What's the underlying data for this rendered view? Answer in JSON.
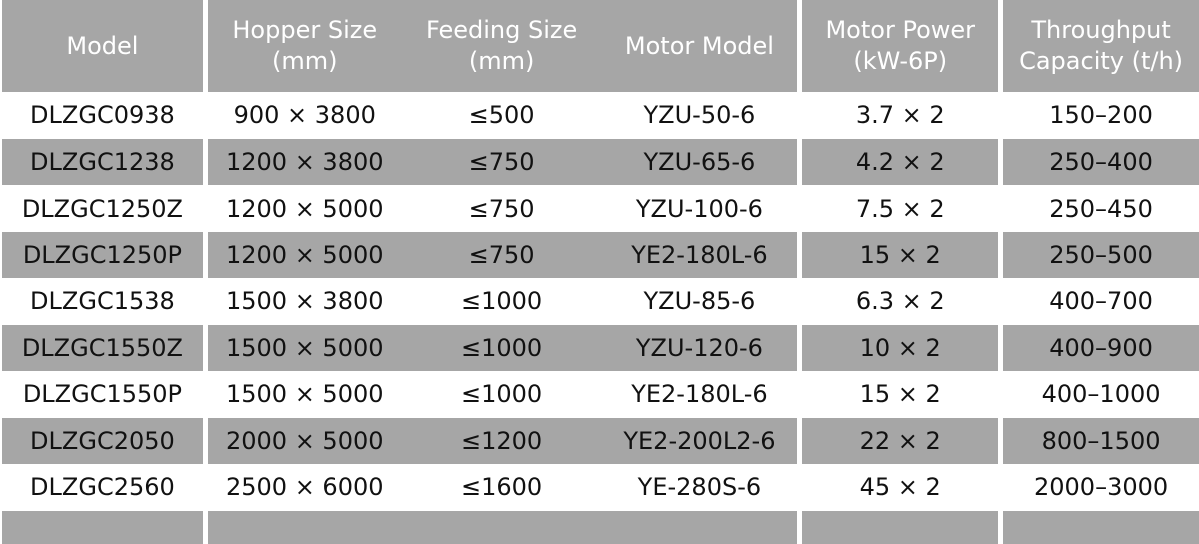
{
  "headers": [
    "Model",
    "Hopper Size\n(mm)",
    "Feeding Size\n(mm)",
    "Motor Model",
    "Motor Power\n(kW-6P)",
    "Throughput\nCapacity (t/h)"
  ],
  "rows": [
    [
      "DLZGC0938",
      "900 × 3800",
      "≤500",
      "YZU-50-6",
      "3.7 × 2",
      "150–200"
    ],
    [
      "DLZGC1238",
      "1200 × 3800",
      "≤750",
      "YZU-65-6",
      "4.2 × 2",
      "250–400"
    ],
    [
      "DLZGC1250Z",
      "1200 × 5000",
      "≤750",
      "YZU-100-6",
      "7.5 × 2",
      "250–450"
    ],
    [
      "DLZGC1250P",
      "1200 × 5000",
      "≤750",
      "YE2-180L-6",
      "15 × 2",
      "250–500"
    ],
    [
      "DLZGC1538",
      "1500 × 3800",
      "≤1000",
      "YZU-85-6",
      "6.3 × 2",
      "400–700"
    ],
    [
      "DLZGC1550Z",
      "1500 × 5000",
      "≤1000",
      "YZU-120-6",
      "10 × 2",
      "400–900"
    ],
    [
      "DLZGC1550P",
      "1500 × 5000",
      "≤1000",
      "YE2-180L-6",
      "15 × 2",
      "400–1000"
    ],
    [
      "DLZGC2050",
      "2000 × 5000",
      "≤1200",
      "YE2-200L2-6",
      "22 × 2",
      "800–1500"
    ],
    [
      "DLZGC2560",
      "2500 × 6000",
      "≤1600",
      "YE-280S-6",
      "45 × 2",
      "2000–3000"
    ]
  ]
}
